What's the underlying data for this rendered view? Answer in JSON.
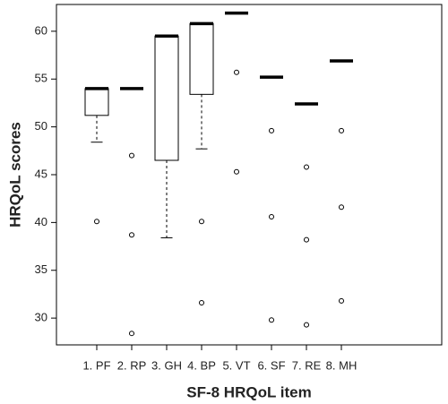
{
  "chart_data": {
    "type": "boxplot",
    "x_label": "SF-8 HRQoL item",
    "y_label": "HRQoL scores",
    "categories": [
      "1. PF",
      "2. RP",
      "3. GH",
      "4. BP",
      "5. VT",
      "6. SF",
      "7. RE",
      "8. MH"
    ],
    "boxes": [
      {
        "min": 48.4,
        "q1": 51.2,
        "median": 54.0,
        "q3": 54.0,
        "max": 54.0,
        "outliers": [
          40.1
        ]
      },
      {
        "min": 54.0,
        "q1": 54.0,
        "median": 54.0,
        "q3": 54.0,
        "max": 54.0,
        "outliers": [
          47.0,
          38.7,
          28.4
        ]
      },
      {
        "min": 38.4,
        "q1": 46.5,
        "median": 59.5,
        "q3": 59.5,
        "max": 59.5,
        "outliers": []
      },
      {
        "min": 47.7,
        "q1": 53.4,
        "median": 60.8,
        "q3": 60.8,
        "max": 60.8,
        "outliers": [
          40.1,
          31.6
        ]
      },
      {
        "min": 61.9,
        "q1": 61.9,
        "median": 61.9,
        "q3": 61.9,
        "max": 61.9,
        "outliers": [
          55.7,
          45.3
        ]
      },
      {
        "min": 55.2,
        "q1": 55.2,
        "median": 55.2,
        "q3": 55.2,
        "max": 55.2,
        "outliers": [
          49.6,
          40.6,
          29.8
        ]
      },
      {
        "min": 52.4,
        "q1": 52.4,
        "median": 52.4,
        "q3": 52.4,
        "max": 52.4,
        "outliers": [
          45.8,
          38.2,
          29.3
        ]
      },
      {
        "min": 56.9,
        "q1": 56.9,
        "median": 56.9,
        "q3": 56.9,
        "max": 56.9,
        "outliers": [
          49.6,
          41.6,
          31.8
        ]
      }
    ],
    "ylim": [
      27.2,
      62.8
    ],
    "yticks": [
      30,
      35,
      40,
      45,
      50,
      55,
      60
    ],
    "grid": false,
    "color": "#000000"
  }
}
